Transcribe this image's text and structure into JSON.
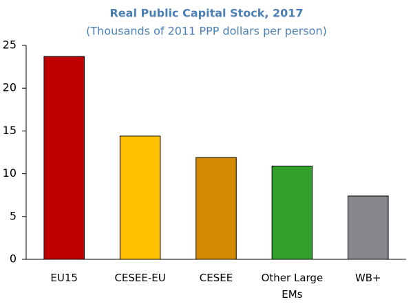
{
  "chart_data": {
    "type": "bar",
    "title": "Real Public Capital Stock, 2017",
    "subtitle": "(Thousands of 2011 PPP dollars per person)",
    "categories": [
      "EU15",
      "CESEE-EU",
      "CESEE",
      "Other Large EMs",
      "WB+"
    ],
    "values": [
      23.7,
      14.4,
      11.9,
      10.9,
      7.4
    ],
    "colors": [
      "#c00000",
      "#ffc000",
      "#d48a00",
      "#33a02c",
      "#87878c"
    ],
    "ylim": [
      0,
      25
    ],
    "yticks": [
      0,
      5,
      10,
      15,
      20,
      25
    ],
    "grid": false
  }
}
